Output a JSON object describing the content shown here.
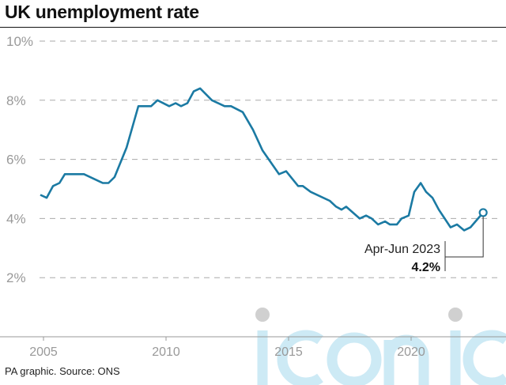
{
  "title": "UK unemployment rate",
  "source": "PA graphic. Source: ONS",
  "watermark": "iconic",
  "colors": {
    "line": "#1b7aa3",
    "grid": "#aaaaaa",
    "watermark": "#cdeaf5"
  },
  "chart_data": {
    "type": "line",
    "title": "UK unemployment rate",
    "xlabel": "",
    "ylabel": "",
    "ylim": [
      0,
      10
    ],
    "xlim": [
      2004.7,
      2023.7
    ],
    "yticks": [
      2,
      4,
      6,
      8,
      10
    ],
    "ytick_labels": [
      "2%",
      "4%",
      "6%",
      "8%",
      "10%"
    ],
    "xticks": [
      2005,
      2010,
      2015,
      2020
    ],
    "xtick_labels": [
      "2005",
      "2010",
      "2015",
      "2020"
    ],
    "grid": true,
    "series": [
      {
        "name": "Unemployment rate (%)",
        "x": [
          2004.87,
          2005.13,
          2005.39,
          2005.65,
          2005.87,
          2006.65,
          2007.42,
          2007.65,
          2007.9,
          2008.39,
          2008.87,
          2009.39,
          2009.65,
          2010.13,
          2010.39,
          2010.61,
          2010.87,
          2011.13,
          2011.39,
          2011.87,
          2012.39,
          2012.65,
          2013.13,
          2013.55,
          2013.94,
          2014.61,
          2014.9,
          2015.39,
          2015.58,
          2015.9,
          2016.68,
          2016.94,
          2017.16,
          2017.35,
          2017.9,
          2018.16,
          2018.39,
          2018.65,
          2018.94,
          2019.13,
          2019.42,
          2019.61,
          2019.9,
          2020.13,
          2020.39,
          2020.61,
          2020.87,
          2021.13,
          2021.61,
          2021.87,
          2022.16,
          2022.42,
          2022.94
        ],
        "y": [
          4.8,
          4.7,
          5.1,
          5.2,
          5.5,
          5.5,
          5.2,
          5.2,
          5.4,
          6.4,
          7.8,
          7.8,
          8.0,
          7.8,
          7.9,
          7.8,
          7.9,
          8.3,
          8.4,
          8.0,
          7.8,
          7.8,
          7.6,
          7.0,
          6.3,
          5.5,
          5.6,
          5.1,
          5.1,
          4.9,
          4.6,
          4.4,
          4.3,
          4.4,
          4.0,
          4.1,
          4.0,
          3.8,
          3.9,
          3.8,
          3.8,
          4.0,
          4.1,
          4.9,
          5.2,
          4.9,
          4.7,
          4.3,
          3.7,
          3.8,
          3.6,
          3.7,
          4.2
        ]
      }
    ],
    "annotation": {
      "label": "Apr-Jun 2023",
      "value": "4.2%"
    }
  }
}
